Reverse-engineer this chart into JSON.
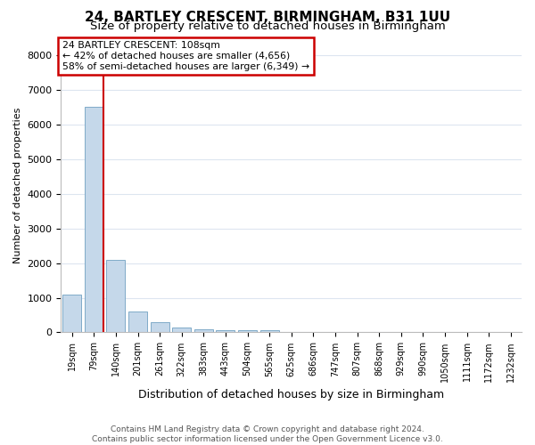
{
  "title": "24, BARTLEY CRESCENT, BIRMINGHAM, B31 1UU",
  "subtitle": "Size of property relative to detached houses in Birmingham",
  "xlabel": "Distribution of detached houses by size in Birmingham",
  "ylabel": "Number of detached properties",
  "footer_line1": "Contains HM Land Registry data © Crown copyright and database right 2024.",
  "footer_line2": "Contains public sector information licensed under the Open Government Licence v3.0.",
  "bin_labels": [
    "19sqm",
    "79sqm",
    "140sqm",
    "201sqm",
    "261sqm",
    "322sqm",
    "383sqm",
    "443sqm",
    "504sqm",
    "565sqm",
    "625sqm",
    "686sqm",
    "747sqm",
    "807sqm",
    "868sqm",
    "929sqm",
    "990sqm",
    "1050sqm",
    "1111sqm",
    "1172sqm",
    "1232sqm"
  ],
  "bar_values": [
    1100,
    6500,
    2100,
    600,
    300,
    150,
    100,
    75,
    50,
    50,
    0,
    0,
    0,
    0,
    0,
    0,
    0,
    0,
    0,
    0,
    0
  ],
  "bar_color": "#c5d8ea",
  "bar_edge_color": "#7faac8",
  "annotation_text": "24 BARTLEY CRESCENT: 108sqm\n← 42% of detached houses are smaller (4,656)\n58% of semi-detached houses are larger (6,349) →",
  "annotation_box_color": "#ffffff",
  "annotation_box_edge_color": "#cc0000",
  "property_line_color": "#cc0000",
  "ylim": [
    0,
    8500
  ],
  "yticks": [
    0,
    1000,
    2000,
    3000,
    4000,
    5000,
    6000,
    7000,
    8000
  ],
  "bg_color": "#ffffff",
  "plot_bg_color": "#ffffff",
  "grid_color": "#dde5f0",
  "title_fontsize": 11,
  "subtitle_fontsize": 9.5,
  "ylabel_fontsize": 8,
  "xlabel_fontsize": 9,
  "tick_fontsize": 7,
  "ytick_fontsize": 8,
  "footer_fontsize": 6.5,
  "annotation_fontsize": 7.8
}
